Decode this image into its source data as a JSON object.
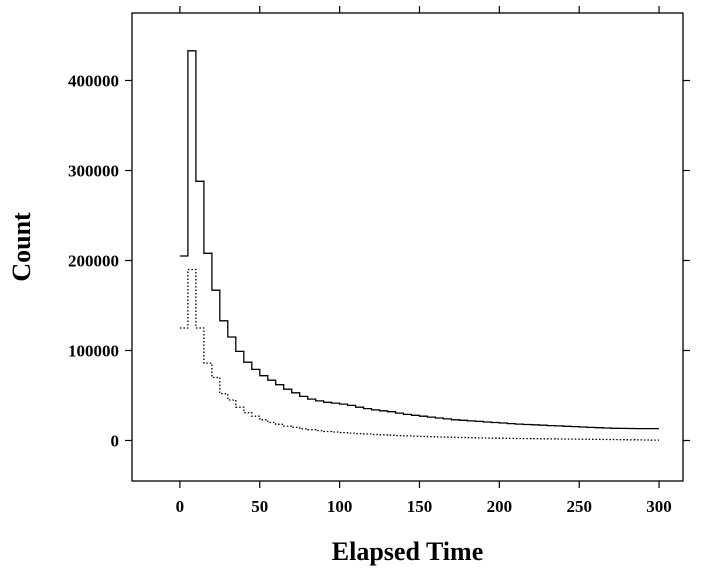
{
  "chart_data": {
    "type": "line",
    "title": "",
    "xlabel": "Elapsed Time",
    "ylabel": "Count",
    "xlim": [
      -30,
      315
    ],
    "ylim": [
      -45000,
      475000
    ],
    "x_ticks": [
      0,
      50,
      100,
      150,
      200,
      250,
      300
    ],
    "x_tick_labels": [
      "0",
      "50",
      "100",
      "150",
      "200",
      "250",
      "300"
    ],
    "y_ticks": [
      0,
      100000,
      200000,
      300000,
      400000
    ],
    "y_tick_labels": [
      "0",
      "100000",
      "200000",
      "300000",
      "400000"
    ],
    "grid": false,
    "step_width": 5,
    "series": [
      {
        "style": "solid",
        "color": "#000000",
        "x_start": 0,
        "values": [
          205000,
          433000,
          288000,
          208000,
          167000,
          133000,
          115000,
          99000,
          87000,
          79000,
          72000,
          67000,
          62000,
          57000,
          53000,
          49000,
          46000,
          44000,
          42500,
          41500,
          40500,
          39000,
          37000,
          35500,
          34000,
          33000,
          32000,
          30500,
          29000,
          28000,
          27000,
          26000,
          25000,
          24000,
          23000,
          22500,
          21800,
          21200,
          20600,
          20000,
          19400,
          18800,
          18200,
          17800,
          17400,
          17000,
          16600,
          16200,
          15800,
          15400,
          15000,
          14600,
          14200,
          13900,
          13600,
          13400,
          13300,
          13200,
          13200,
          13200
        ]
      },
      {
        "style": "dotted",
        "color": "#000000",
        "x_start": 0,
        "values": [
          125000,
          190000,
          125000,
          86000,
          70000,
          52000,
          45000,
          37000,
          31000,
          27000,
          23000,
          20000,
          18000,
          16000,
          14500,
          13000,
          12000,
          11000,
          10000,
          9400,
          8800,
          8200,
          7700,
          7200,
          6700,
          6300,
          5900,
          5500,
          5100,
          4800,
          4500,
          4200,
          3900,
          3700,
          3500,
          3300,
          3100,
          2900,
          2700,
          2600,
          2400,
          2300,
          2200,
          2100,
          2000,
          1900,
          1800,
          1700,
          1600,
          1500,
          1400,
          1300,
          1200,
          1100,
          1000,
          900,
          800,
          700,
          600,
          500
        ]
      }
    ]
  }
}
